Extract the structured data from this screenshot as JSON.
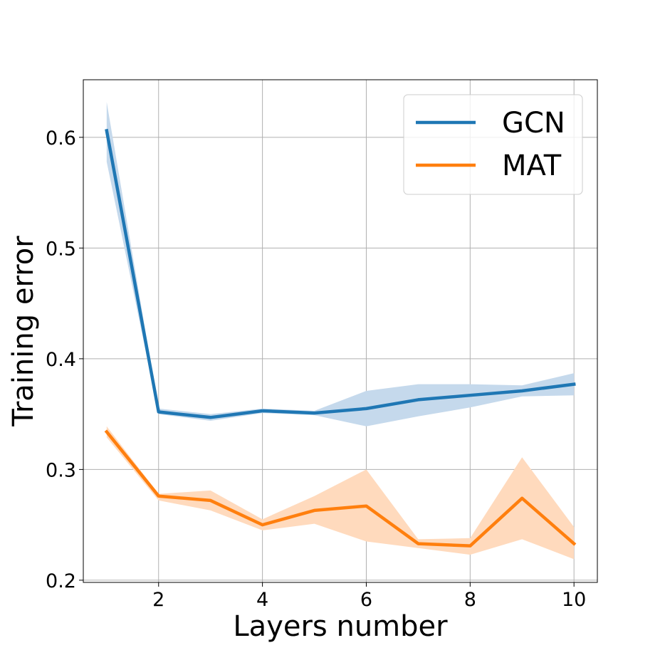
{
  "chart_data": {
    "type": "line",
    "title": "",
    "xlabel": "Layers number",
    "ylabel": "Training error",
    "xlim": [
      0.55,
      10.45
    ],
    "ylim": [
      0.198,
      0.652
    ],
    "xticks": [
      2,
      4,
      6,
      8,
      10
    ],
    "xtick_labels": [
      "2",
      "4",
      "6",
      "8",
      "10"
    ],
    "yticks": [
      0.2,
      0.3,
      0.4,
      0.5,
      0.6
    ],
    "ytick_labels": [
      "0.2",
      "0.3",
      "0.4",
      "0.5",
      "0.6"
    ],
    "grid": true,
    "legend_position": "top-right",
    "x": [
      1,
      2,
      3,
      4,
      5,
      6,
      7,
      8,
      9,
      10
    ],
    "series": [
      {
        "name": "GCN",
        "color": "#1f77b4",
        "band_color": "#c5d9ec",
        "values": [
          0.606,
          0.352,
          0.347,
          0.353,
          0.351,
          0.355,
          0.363,
          0.367,
          0.371,
          0.377
        ],
        "lower": [
          0.578,
          0.35,
          0.344,
          0.351,
          0.349,
          0.339,
          0.348,
          0.356,
          0.366,
          0.367
        ],
        "upper": [
          0.632,
          0.355,
          0.35,
          0.355,
          0.353,
          0.371,
          0.377,
          0.377,
          0.376,
          0.387
        ]
      },
      {
        "name": "MAT",
        "color": "#ff7f0e",
        "band_color": "#ffdabd",
        "values": [
          0.334,
          0.276,
          0.272,
          0.25,
          0.263,
          0.267,
          0.233,
          0.231,
          0.274,
          0.233
        ],
        "lower": [
          0.329,
          0.272,
          0.263,
          0.245,
          0.251,
          0.235,
          0.229,
          0.223,
          0.237,
          0.219
        ],
        "upper": [
          0.339,
          0.278,
          0.281,
          0.255,
          0.276,
          0.3,
          0.237,
          0.238,
          0.311,
          0.248
        ]
      }
    ]
  }
}
